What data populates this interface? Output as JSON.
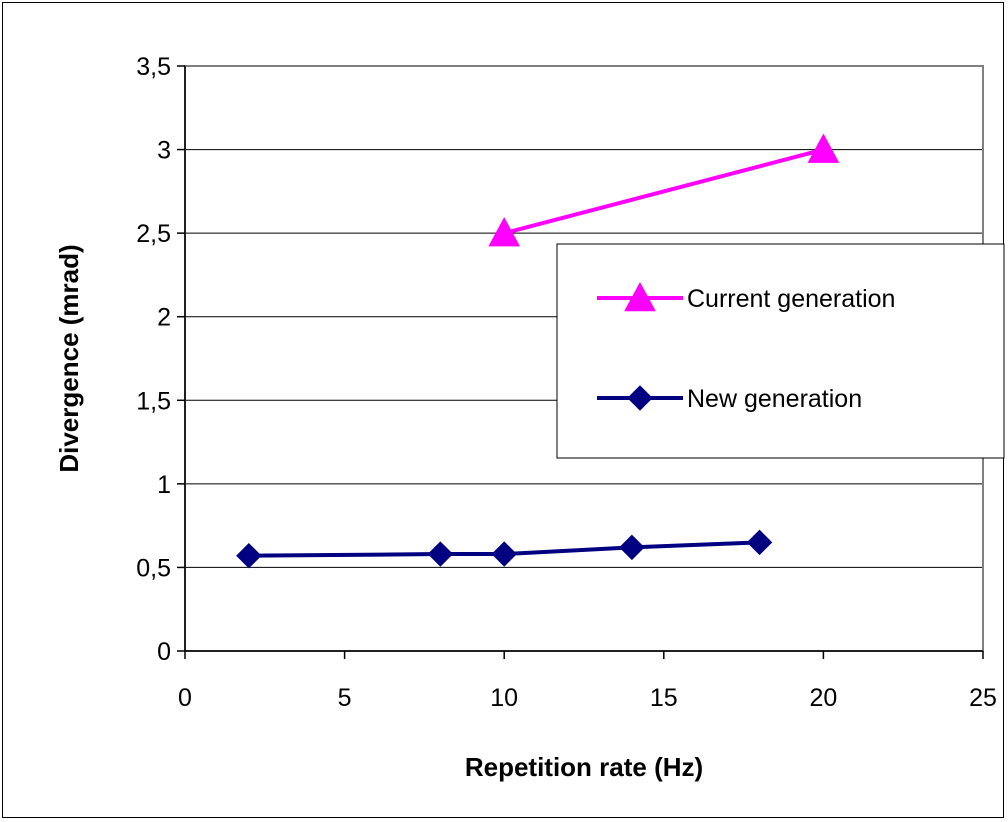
{
  "chart_data": {
    "type": "line",
    "title": "",
    "xlabel": "Repetition rate (Hz)",
    "ylabel": "Divergence (mrad)",
    "xlim": [
      0,
      25
    ],
    "ylim": [
      0,
      3.5
    ],
    "x_ticks": [
      "0",
      "5",
      "10",
      "15",
      "20",
      "25"
    ],
    "y_ticks": [
      "0",
      "0,5",
      "1",
      "1,5",
      "2",
      "2,5",
      "3",
      "3,5"
    ],
    "grid": "horizontal",
    "legend_position": "right",
    "series": [
      {
        "name": "Current generation",
        "color": "#ff00ff",
        "marker": "triangle",
        "points": [
          [
            10,
            2.5
          ],
          [
            20,
            3.0
          ]
        ]
      },
      {
        "name": "New generation",
        "color": "#000080",
        "marker": "diamond",
        "points": [
          [
            2,
            0.57
          ],
          [
            8,
            0.58
          ],
          [
            10,
            0.58
          ],
          [
            14,
            0.62
          ],
          [
            18,
            0.65
          ]
        ]
      }
    ]
  }
}
